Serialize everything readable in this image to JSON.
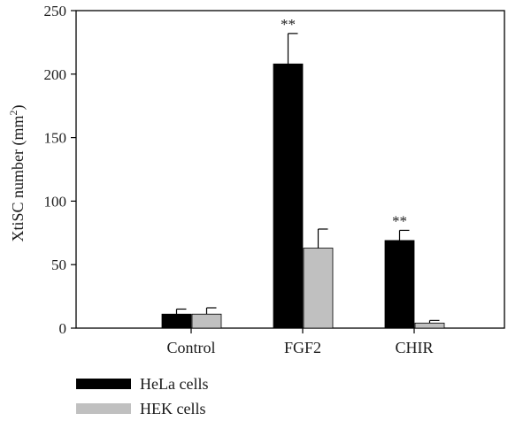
{
  "chart_data": {
    "type": "bar",
    "title": "",
    "xlabel": "",
    "ylabel": "XtiSC number (mm",
    "ylabel_sup": "2",
    "ylabel_close": ")",
    "ylim": [
      0,
      250
    ],
    "yticks": [
      0,
      50,
      100,
      150,
      200,
      250
    ],
    "categories": [
      "Control",
      "FGF2",
      "CHIR"
    ],
    "series": [
      {
        "name": "HeLa cells",
        "color": "#000000",
        "values": [
          11,
          208,
          69
        ],
        "errors": [
          4,
          24,
          8
        ],
        "annotations": [
          "",
          "**",
          "**"
        ]
      },
      {
        "name": "HEK cells",
        "color": "#c0c0c0",
        "values": [
          11,
          63,
          4
        ],
        "errors": [
          5,
          15,
          2
        ],
        "annotations": [
          "",
          "",
          ""
        ]
      }
    ],
    "legend_position": "bottom-left",
    "grid": false
  }
}
